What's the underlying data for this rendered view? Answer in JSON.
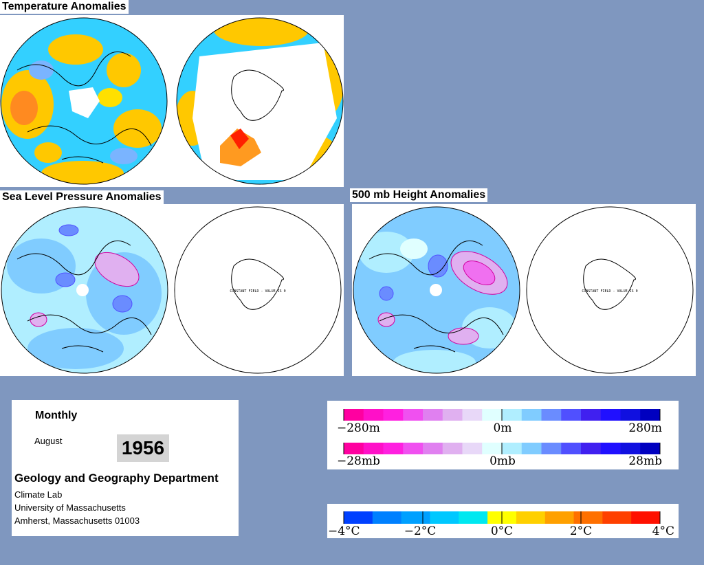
{
  "titles": {
    "temperature": "Temperature Anomalies",
    "slp": "Sea Level Pressure Anomalies",
    "height500": "500 mb Height Anomalies"
  },
  "constant_field_label": "CONSTANT FIELD - VALUE IS 0",
  "info": {
    "period": "Monthly",
    "month": "August",
    "year": "1956",
    "department": "Geology and Geography Department",
    "lines": [
      "Climate Lab",
      "University of Massachusetts",
      "Amherst, Massachusetts 01003"
    ]
  },
  "height_scale": {
    "left": "−280m",
    "mid": "0m",
    "right": "280m"
  },
  "pressure_scale": {
    "left": "−28mb",
    "mid": "0mb",
    "right": "28mb"
  },
  "temp_scale": {
    "labels": [
      "−4°C",
      "−2°C",
      "0°C",
      "2°C",
      "4°C"
    ]
  },
  "colors": {
    "background": "#7f97bf",
    "diverging": [
      "#ff00a0",
      "#ff10c8",
      "#ff20e0",
      "#f050f0",
      "#e080f0",
      "#e0b0f0",
      "#e8d8f8",
      "#e0ffff",
      "#b0eeff",
      "#80ccff",
      "#6a8cff",
      "#5050ff",
      "#4020f0",
      "#2010ff",
      "#1010e0",
      "#0000c0"
    ],
    "temp": [
      "#0040ff",
      "#0080ff",
      "#00a0ff",
      "#00c8ff",
      "#00e8f0",
      "#ffff00",
      "#ffd000",
      "#ffa000",
      "#ff7000",
      "#ff4000",
      "#ff1000"
    ]
  }
}
